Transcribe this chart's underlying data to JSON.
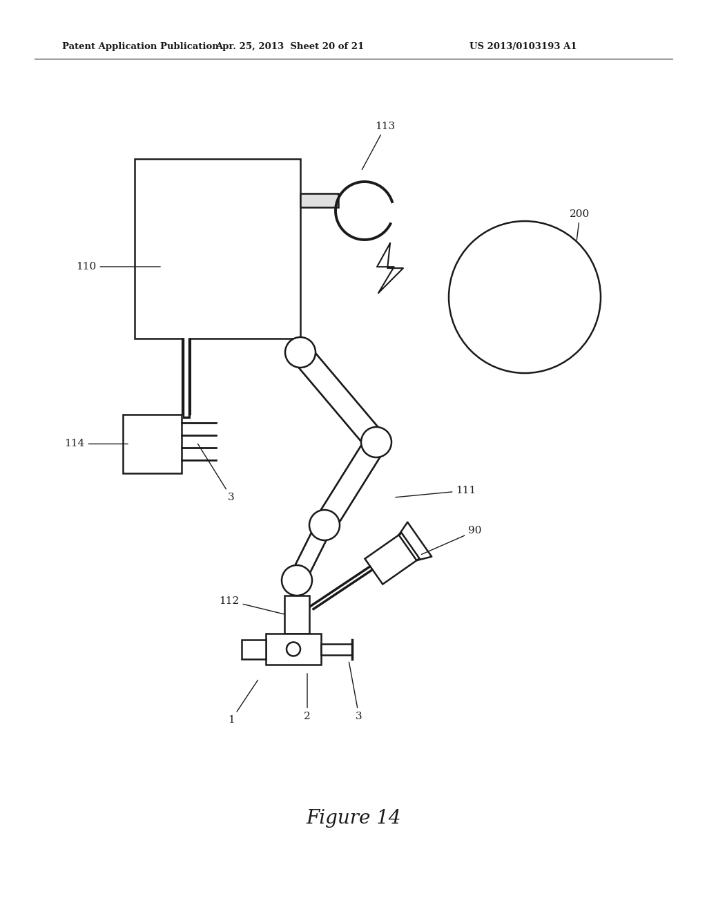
{
  "bg_color": "#ffffff",
  "line_color": "#1a1a1a",
  "header_left": "Patent Application Publication",
  "header_center": "Apr. 25, 2013  Sheet 20 of 21",
  "header_right": "US 2013/0103193 A1",
  "figure_label": "Figure 14"
}
